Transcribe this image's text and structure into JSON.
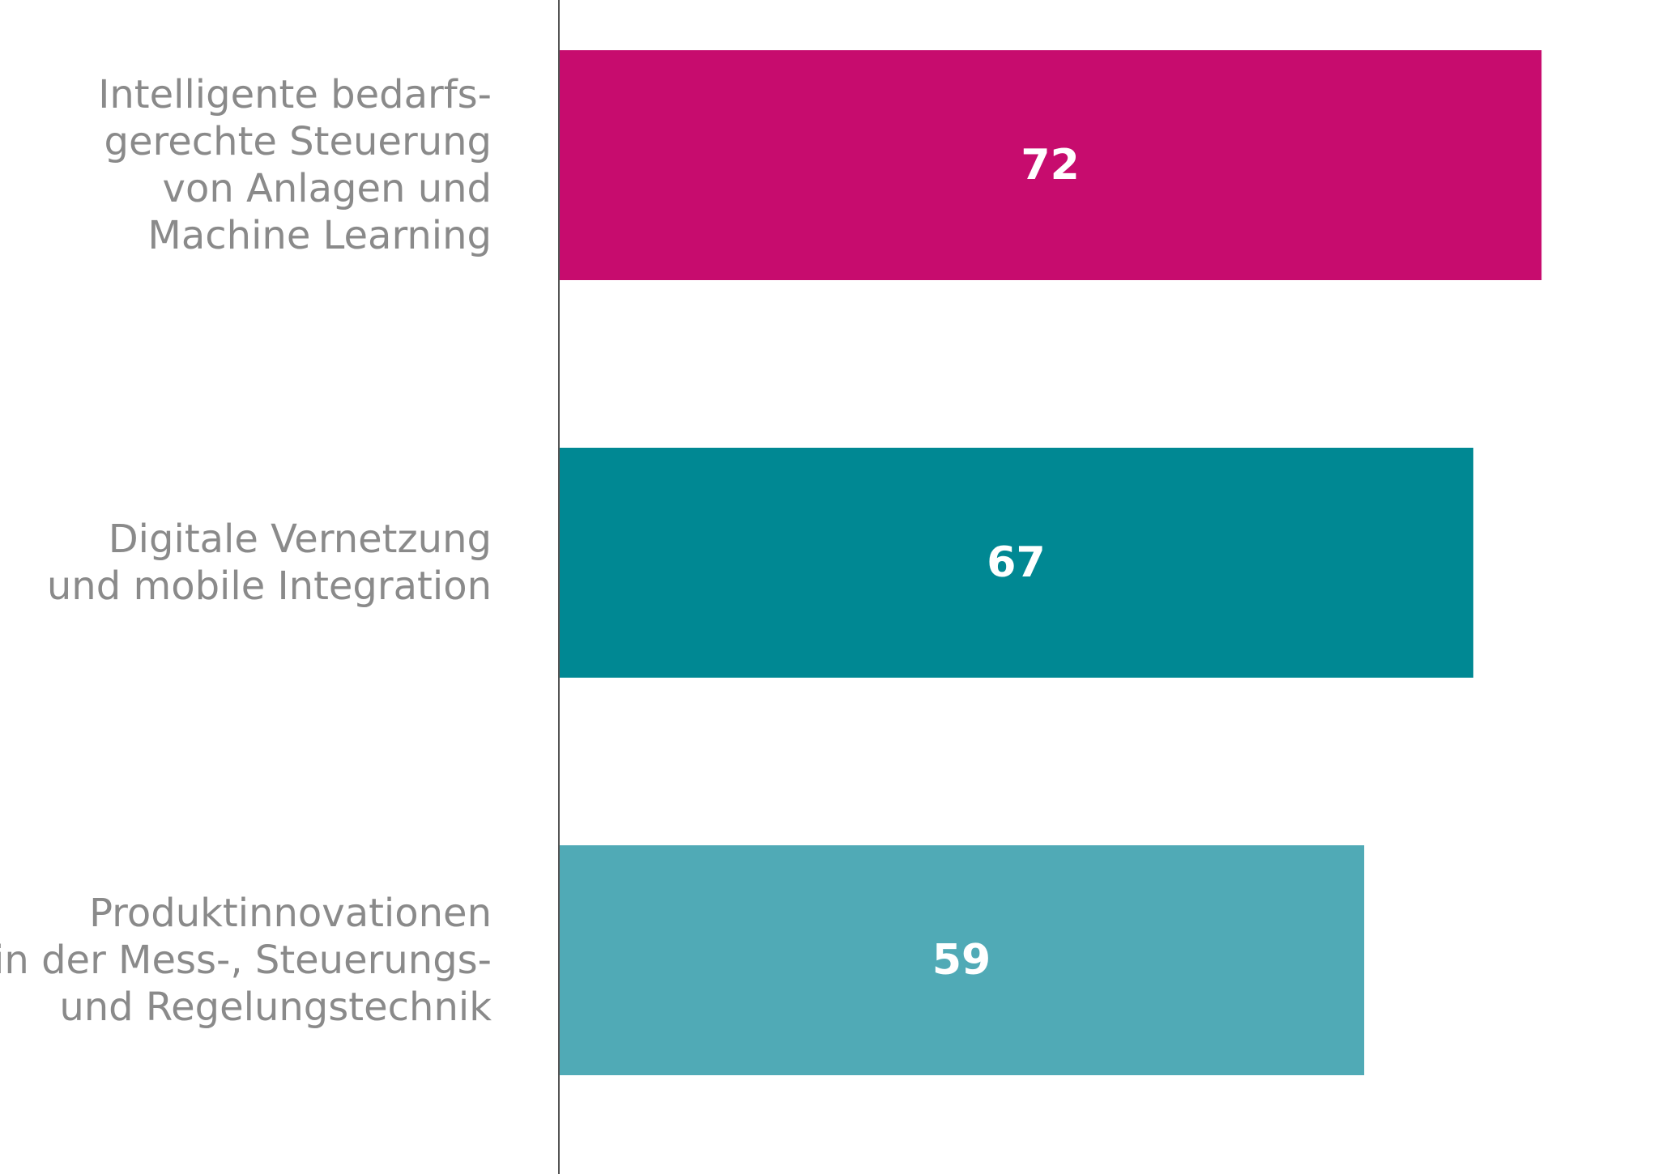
{
  "chart_data": {
    "type": "bar",
    "orientation": "horizontal",
    "categories": [
      "Intelligente bedarfs-\ngerechte Steuerung\nvon Anlagen und\nMachine Learning",
      "Digitale Vernetzung\nund mobile Integration",
      "Produktinnovationen\nin der Mess-, Steuerungs-\nund Regelungstechnik"
    ],
    "values": [
      72,
      67,
      59
    ],
    "value_labels": [
      "72",
      "67",
      "59"
    ],
    "colors": [
      "#c70c6e",
      "#008893",
      "#50aab6"
    ],
    "xlim": [
      0,
      80
    ],
    "grid": false,
    "legend": "none",
    "axis_line_color": "#555555",
    "title": "",
    "xlabel": "",
    "ylabel": ""
  }
}
